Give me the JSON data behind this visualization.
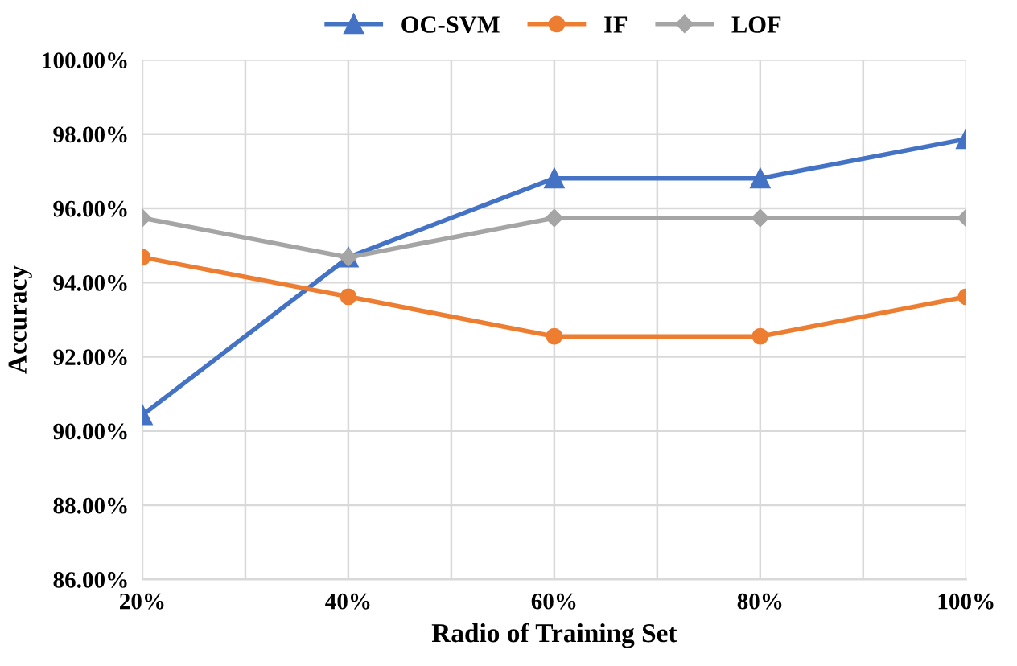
{
  "chart_data": {
    "type": "line",
    "xlabel": "Radio of Training Set",
    "ylabel": "Accuracy",
    "x": [
      20,
      40,
      60,
      80,
      100
    ],
    "series": [
      {
        "name": "OC-SVM",
        "color": "#4472c4",
        "marker": "triangle",
        "values": [
          90.43,
          94.68,
          96.81,
          96.81,
          97.87
        ]
      },
      {
        "name": "IF",
        "color": "#ed7d31",
        "marker": "circle",
        "values": [
          94.68,
          93.62,
          92.55,
          92.55,
          93.62
        ]
      },
      {
        "name": "LOF",
        "color": "#a5a5a5",
        "marker": "diamond",
        "values": [
          95.74,
          94.68,
          95.74,
          95.74,
          95.74
        ]
      }
    ],
    "xlim": [
      20,
      100
    ],
    "xticks": [
      {
        "value": 20,
        "label": "20%"
      },
      {
        "value": 30,
        "label": null
      },
      {
        "value": 40,
        "label": "40%"
      },
      {
        "value": 50,
        "label": null
      },
      {
        "value": 60,
        "label": "60%"
      },
      {
        "value": 70,
        "label": null
      },
      {
        "value": 80,
        "label": "80%"
      },
      {
        "value": 90,
        "label": null
      },
      {
        "value": 100,
        "label": "100%"
      }
    ],
    "ylim": [
      86,
      100
    ],
    "yticks": [
      {
        "value": 86,
        "label": "86.00%"
      },
      {
        "value": 88,
        "label": "88.00%"
      },
      {
        "value": 90,
        "label": "90.00%"
      },
      {
        "value": 92,
        "label": "92.00%"
      },
      {
        "value": 94,
        "label": "94.00%"
      },
      {
        "value": 96,
        "label": "96.00%"
      },
      {
        "value": 98,
        "label": "98.00%"
      },
      {
        "value": 100,
        "label": "100.00%"
      }
    ],
    "grid": true,
    "legend": "top",
    "line_style": "solid"
  }
}
